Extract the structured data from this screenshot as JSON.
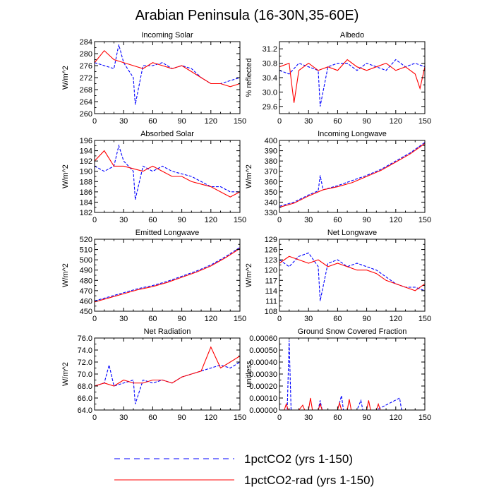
{
  "figure": {
    "title": "Arabian Peninsula (16-30N,35-60E)"
  },
  "legend": {
    "entries": [
      {
        "label": "1pctCO2 (yrs 1-150)",
        "color": "#0000ff",
        "dash": "dashed"
      },
      {
        "label": "1pctCO2-rad (yrs 1-150)",
        "color": "#ff0000",
        "dash": "solid"
      }
    ]
  },
  "chart_data": [
    {
      "type": "line",
      "title": "Incoming Solar",
      "ylabel": "W/m^2",
      "xlim": [
        0,
        150
      ],
      "ylim": [
        260,
        284
      ],
      "xticks": [
        0,
        30,
        60,
        90,
        120,
        150
      ],
      "yticks": [
        260,
        264,
        268,
        272,
        276,
        280,
        284
      ],
      "ytick_labels": [
        "260",
        "264",
        "268",
        "272",
        "276",
        "280",
        "284"
      ],
      "series": [
        {
          "name": "1pctCO2 (yrs 1-150)",
          "color": "#0000ff",
          "style": "dashed",
          "x": [
            0,
            10,
            20,
            25,
            30,
            40,
            42,
            50,
            60,
            70,
            80,
            90,
            100,
            110,
            120,
            130,
            140,
            150
          ],
          "y": [
            277,
            276,
            275,
            283,
            277,
            272,
            263,
            276,
            276,
            277,
            275,
            276,
            275,
            272,
            270,
            270,
            271,
            272
          ]
        },
        {
          "name": "1pctCO2-rad (yrs 1-150)",
          "color": "#ff0000",
          "style": "solid",
          "x": [
            0,
            10,
            20,
            30,
            40,
            50,
            60,
            70,
            80,
            90,
            100,
            110,
            120,
            130,
            140,
            150
          ],
          "y": [
            277,
            281,
            278,
            277,
            276,
            275,
            277,
            276,
            275,
            276,
            274,
            272,
            270,
            270,
            269,
            270
          ]
        }
      ]
    },
    {
      "type": "line",
      "title": "Albedo",
      "ylabel": "% reflected",
      "xlim": [
        0,
        150
      ],
      "ylim": [
        29.4,
        31.4
      ],
      "xticks": [
        0,
        30,
        60,
        90,
        120,
        150
      ],
      "yticks": [
        29.6,
        30.0,
        30.4,
        30.8,
        31.2
      ],
      "ytick_labels": [
        "29.6",
        "30.0",
        "30.4",
        "30.8",
        "31.2"
      ],
      "series": [
        {
          "name": "1pctCO2 (yrs 1-150)",
          "color": "#0000ff",
          "style": "dashed",
          "x": [
            0,
            10,
            20,
            30,
            40,
            42,
            50,
            60,
            70,
            80,
            90,
            100,
            110,
            120,
            130,
            140,
            150
          ],
          "y": [
            30.6,
            30.5,
            30.8,
            30.7,
            30.6,
            29.6,
            30.7,
            30.8,
            30.8,
            30.6,
            30.8,
            30.7,
            30.6,
            30.9,
            30.7,
            30.8,
            30.7
          ]
        },
        {
          "name": "1pctCO2-rad (yrs 1-150)",
          "color": "#ff0000",
          "style": "solid",
          "x": [
            0,
            10,
            15,
            20,
            30,
            40,
            50,
            60,
            70,
            80,
            90,
            100,
            110,
            120,
            130,
            140,
            145,
            150
          ],
          "y": [
            30.7,
            30.8,
            29.7,
            30.6,
            30.8,
            30.6,
            30.7,
            30.6,
            30.9,
            30.7,
            30.6,
            30.7,
            30.8,
            30.6,
            30.7,
            30.5,
            30.1,
            30.7
          ]
        }
      ]
    },
    {
      "type": "line",
      "title": "Absorbed Solar",
      "ylabel": "W/m^2",
      "xlim": [
        0,
        150
      ],
      "ylim": [
        182,
        196
      ],
      "xticks": [
        0,
        30,
        60,
        90,
        120,
        150
      ],
      "yticks": [
        182,
        184,
        186,
        188,
        190,
        192,
        194,
        196
      ],
      "ytick_labels": [
        "182",
        "184",
        "186",
        "188",
        "190",
        "192",
        "194",
        "196"
      ],
      "series": [
        {
          "name": "1pctCO2 (yrs 1-150)",
          "color": "#0000ff",
          "style": "dashed",
          "x": [
            0,
            10,
            20,
            25,
            30,
            40,
            42,
            50,
            60,
            70,
            80,
            90,
            100,
            110,
            120,
            130,
            140,
            150
          ],
          "y": [
            191,
            190,
            191,
            195,
            192,
            190,
            184.5,
            191,
            190,
            191,
            190,
            189.5,
            189,
            188,
            187,
            187,
            186,
            186
          ]
        },
        {
          "name": "1pctCO2-rad (yrs 1-150)",
          "color": "#ff0000",
          "style": "solid",
          "x": [
            0,
            10,
            20,
            30,
            40,
            50,
            60,
            70,
            80,
            90,
            100,
            110,
            120,
            130,
            140,
            150
          ],
          "y": [
            192,
            194,
            191,
            191,
            190.5,
            190,
            191,
            190,
            189,
            189,
            188,
            187.5,
            187,
            186,
            185,
            186
          ]
        }
      ]
    },
    {
      "type": "line",
      "title": "Incoming Longwave",
      "ylabel": "W/m^2",
      "xlim": [
        0,
        150
      ],
      "ylim": [
        330,
        400
      ],
      "xticks": [
        0,
        30,
        60,
        90,
        120,
        150
      ],
      "yticks": [
        330,
        340,
        350,
        360,
        370,
        380,
        390,
        400
      ],
      "ytick_labels": [
        "330",
        "340",
        "350",
        "360",
        "370",
        "380",
        "390",
        "400"
      ],
      "series": [
        {
          "name": "1pctCO2 (yrs 1-150)",
          "color": "#0000ff",
          "style": "dashed",
          "x": [
            0,
            15,
            30,
            40,
            42,
            45,
            60,
            75,
            90,
            105,
            120,
            135,
            150
          ],
          "y": [
            336,
            340,
            347,
            351,
            366,
            352,
            356,
            361,
            366,
            372,
            380,
            388,
            398
          ]
        },
        {
          "name": "1pctCO2-rad (yrs 1-150)",
          "color": "#ff0000",
          "style": "solid",
          "x": [
            0,
            15,
            30,
            45,
            60,
            75,
            90,
            105,
            120,
            135,
            150
          ],
          "y": [
            335,
            339,
            346,
            352,
            355,
            359,
            365,
            371,
            379,
            387,
            397
          ]
        }
      ]
    },
    {
      "type": "line",
      "title": "Emitted Longwave",
      "ylabel": "W/m^2",
      "xlim": [
        0,
        150
      ],
      "ylim": [
        450,
        520
      ],
      "xticks": [
        0,
        30,
        60,
        90,
        120,
        150
      ],
      "yticks": [
        450,
        460,
        470,
        480,
        490,
        500,
        510,
        520
      ],
      "ytick_labels": [
        "450",
        "460",
        "470",
        "480",
        "490",
        "500",
        "510",
        "520"
      ],
      "series": [
        {
          "name": "1pctCO2 (yrs 1-150)",
          "color": "#0000ff",
          "style": "dashed",
          "x": [
            0,
            15,
            30,
            45,
            60,
            75,
            90,
            105,
            120,
            135,
            150
          ],
          "y": [
            460,
            464,
            468,
            472,
            475,
            479,
            484,
            489,
            495,
            503,
            512
          ]
        },
        {
          "name": "1pctCO2-rad (yrs 1-150)",
          "color": "#ff0000",
          "style": "solid",
          "x": [
            0,
            15,
            30,
            45,
            60,
            75,
            90,
            105,
            120,
            135,
            150
          ],
          "y": [
            459,
            463,
            467,
            471,
            474,
            478,
            483,
            488,
            494,
            502,
            511
          ]
        }
      ]
    },
    {
      "type": "line",
      "title": "Net Longwave",
      "ylabel": "W/m^2",
      "xlim": [
        0,
        150
      ],
      "ylim": [
        108,
        129
      ],
      "xticks": [
        0,
        30,
        60,
        90,
        120,
        150
      ],
      "yticks": [
        108,
        111,
        114,
        117,
        120,
        123,
        126,
        129
      ],
      "ytick_labels": [
        "108",
        "111",
        "114",
        "117",
        "120",
        "123",
        "126",
        "129"
      ],
      "series": [
        {
          "name": "1pctCO2 (yrs 1-150)",
          "color": "#0000ff",
          "style": "dashed",
          "x": [
            0,
            10,
            20,
            30,
            40,
            42,
            50,
            60,
            70,
            80,
            90,
            100,
            110,
            120,
            130,
            140,
            150
          ],
          "y": [
            123,
            121,
            124,
            125,
            121,
            111,
            122,
            123,
            121,
            122,
            121,
            120,
            118,
            116,
            115,
            115,
            114
          ]
        },
        {
          "name": "1pctCO2-rad (yrs 1-150)",
          "color": "#ff0000",
          "style": "solid",
          "x": [
            0,
            10,
            20,
            30,
            40,
            50,
            60,
            70,
            80,
            90,
            100,
            110,
            120,
            130,
            140,
            150
          ],
          "y": [
            122,
            124,
            123,
            122,
            123,
            121,
            122,
            121,
            120,
            120,
            119,
            117,
            116,
            115,
            114,
            116
          ]
        }
      ]
    },
    {
      "type": "line",
      "title": "Net Radiation",
      "ylabel": "W/m^2",
      "xlim": [
        0,
        150
      ],
      "ylim": [
        64,
        76
      ],
      "xticks": [
        0,
        30,
        60,
        90,
        120,
        150
      ],
      "yticks": [
        64,
        66,
        68,
        70,
        72,
        74,
        76
      ],
      "ytick_labels": [
        "64.0",
        "66.0",
        "68.0",
        "70.0",
        "72.0",
        "74.0",
        "76.0"
      ],
      "series": [
        {
          "name": "1pctCO2 (yrs 1-150)",
          "color": "#0000ff",
          "style": "dashed",
          "x": [
            0,
            10,
            15,
            20,
            30,
            40,
            42,
            50,
            60,
            70,
            80,
            90,
            100,
            110,
            120,
            130,
            140,
            150
          ],
          "y": [
            68,
            68.5,
            71.5,
            68,
            68.5,
            69,
            65,
            69,
            68.5,
            69,
            68.5,
            69.5,
            70,
            70.5,
            71,
            71.5,
            71,
            72
          ]
        },
        {
          "name": "1pctCO2-rad (yrs 1-150)",
          "color": "#ff0000",
          "style": "solid",
          "x": [
            0,
            10,
            20,
            30,
            40,
            50,
            60,
            70,
            80,
            90,
            100,
            110,
            120,
            130,
            140,
            150
          ],
          "y": [
            68,
            68.5,
            68,
            69,
            68.5,
            68.5,
            69,
            69,
            68.5,
            69.5,
            70,
            70.5,
            74.5,
            71,
            72,
            73
          ]
        }
      ]
    },
    {
      "type": "line",
      "title": "Ground Snow Covered Fraction",
      "ylabel": "unitless",
      "xlim": [
        0,
        150
      ],
      "ylim": [
        0,
        0.0006
      ],
      "xticks": [
        0,
        30,
        60,
        90,
        120,
        150
      ],
      "yticks": [
        0,
        0.0001,
        0.0002,
        0.0003,
        0.0004,
        0.0005,
        0.0006
      ],
      "ytick_labels": [
        "0.00000",
        "0.00010",
        "0.00020",
        "0.00030",
        "0.00040",
        "0.00050",
        "0.00060"
      ],
      "series": [
        {
          "name": "1pctCO2 (yrs 1-150)",
          "color": "#0000ff",
          "style": "dashed",
          "x": [
            0,
            8,
            10,
            12,
            20,
            40,
            42,
            44,
            60,
            64,
            66,
            80,
            84,
            86,
            100,
            124,
            126,
            128,
            150
          ],
          "y": [
            0,
            0,
            0.00058,
            0,
            0,
            0,
            8e-05,
            0,
            0,
            0.00012,
            0,
            0,
            8e-05,
            0,
            0,
            0.0001,
            0,
            0,
            0
          ]
        },
        {
          "name": "1pctCO2-rad (yrs 1-150)",
          "color": "#ff0000",
          "style": "solid",
          "x": [
            0,
            5,
            7,
            9,
            20,
            24,
            26,
            30,
            32,
            34,
            40,
            42,
            44,
            60,
            62,
            64,
            70,
            72,
            74,
            90,
            92,
            94,
            100,
            102,
            104,
            110,
            150
          ],
          "y": [
            0,
            0,
            5e-05,
            0,
            0,
            4e-05,
            0,
            0,
            0.0001,
            0,
            0,
            5e-05,
            0,
            0,
            6e-05,
            0,
            0,
            9e-05,
            0,
            0,
            8e-05,
            0,
            0,
            5e-05,
            0,
            0,
            0
          ]
        }
      ]
    }
  ]
}
